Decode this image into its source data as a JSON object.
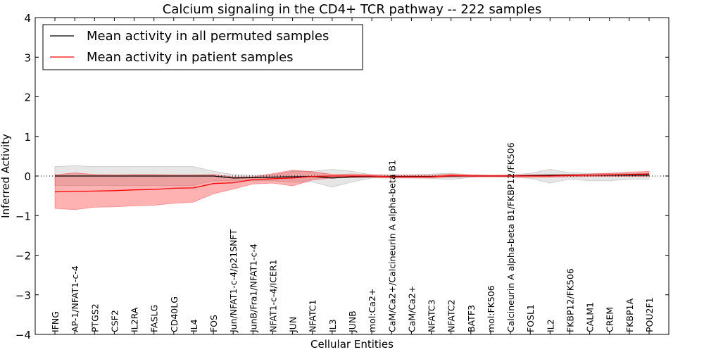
{
  "chart_data": {
    "type": "line",
    "title": "Calcium signaling in the CD4+ TCR pathway -- 222 samples",
    "xlabel": "Cellular Entities",
    "ylabel": "Inferred Activity",
    "ylim": [
      -4,
      4
    ],
    "yticks": [
      -4,
      -3,
      -2,
      -1,
      0,
      1,
      2,
      3,
      4
    ],
    "ytick_labels": [
      "−4",
      "−3",
      "−2",
      "−1",
      "0",
      "1",
      "2",
      "3",
      "4"
    ],
    "legend_position": "upper-left",
    "categories": [
      "IFNG",
      "AP-1/NFAT1-c-4",
      "PTGS2",
      "CSF2",
      "IL2RA",
      "FASLG",
      "CD40LG",
      "IL4",
      "FOS",
      "Jun/NFAT1-c-4/p21SNFT",
      "JunB/Fra1/NFAT1-c-4",
      "NFAT1-c-4/ICER1",
      "JUN",
      "NFATC1",
      "IL3",
      "JUNB",
      "mol:Ca2+",
      "CaM/Ca2+/Calcineurin A alpha-beta B1",
      "CaM/Ca2+",
      "NFATC3",
      "NFATC2",
      "BATF3",
      "mol:FK506",
      "Calcineurin A alpha-beta B1/FKBP12/FK506",
      "FOSL1",
      "IL2",
      "FKBP12/FK506",
      "CALM1",
      "CREM",
      "FKBP1A",
      "POU2F1"
    ],
    "series": [
      {
        "name": "Mean activity in all permuted samples",
        "color": "#000000",
        "values": [
          0.0,
          0.0,
          0.0,
          0.0,
          0.0,
          0.0,
          0.0,
          0.0,
          0.0,
          -0.05,
          -0.04,
          -0.03,
          -0.02,
          -0.01,
          -0.05,
          -0.02,
          -0.01,
          -0.01,
          -0.01,
          -0.01,
          0.0,
          0.0,
          0.0,
          0.0,
          0.01,
          0.02,
          0.02,
          0.02,
          0.02,
          0.02,
          0.02
        ],
        "band_upper": [
          0.24,
          0.26,
          0.24,
          0.24,
          0.24,
          0.24,
          0.24,
          0.24,
          0.12,
          0.04,
          0.02,
          0.03,
          0.12,
          0.12,
          0.17,
          0.12,
          0.03,
          0.03,
          0.03,
          0.05,
          0.07,
          0.03,
          0.02,
          0.03,
          0.07,
          0.17,
          0.08,
          0.07,
          0.07,
          0.07,
          0.07
        ],
        "band_lower": [
          -0.24,
          -0.24,
          -0.24,
          -0.24,
          -0.24,
          -0.24,
          -0.24,
          -0.24,
          -0.12,
          -0.12,
          -0.12,
          -0.12,
          -0.16,
          -0.15,
          -0.28,
          -0.15,
          -0.05,
          -0.05,
          -0.05,
          -0.06,
          -0.09,
          -0.03,
          -0.02,
          -0.03,
          -0.06,
          -0.18,
          -0.08,
          -0.12,
          -0.12,
          -0.08,
          -0.08
        ]
      },
      {
        "name": "Mean activity in patient samples",
        "color": "#ff0000",
        "values": [
          -0.4,
          -0.39,
          -0.38,
          -0.37,
          -0.35,
          -0.34,
          -0.31,
          -0.3,
          -0.19,
          -0.17,
          -0.09,
          -0.07,
          -0.05,
          -0.01,
          0.0,
          0.0,
          0.0,
          -0.02,
          -0.02,
          -0.02,
          0.01,
          0.0,
          0.0,
          0.0,
          0.0,
          0.0,
          0.01,
          0.02,
          0.03,
          0.04,
          0.05
        ],
        "band_upper": [
          0.03,
          0.08,
          0.04,
          0.03,
          0.04,
          0.04,
          0.03,
          0.03,
          0.04,
          -0.02,
          -0.02,
          0.06,
          0.15,
          0.11,
          0.04,
          0.05,
          0.03,
          0.02,
          0.02,
          0.02,
          0.05,
          0.03,
          0.02,
          0.02,
          0.03,
          0.03,
          0.04,
          0.05,
          0.07,
          0.1,
          0.12
        ],
        "band_lower": [
          -0.82,
          -0.85,
          -0.79,
          -0.78,
          -0.75,
          -0.74,
          -0.69,
          -0.66,
          -0.45,
          -0.33,
          -0.2,
          -0.18,
          -0.25,
          -0.1,
          -0.05,
          -0.04,
          -0.04,
          -0.05,
          -0.05,
          -0.05,
          -0.03,
          -0.02,
          -0.02,
          -0.02,
          -0.03,
          -0.03,
          -0.02,
          -0.01,
          -0.01,
          -0.01,
          -0.01
        ]
      }
    ]
  }
}
